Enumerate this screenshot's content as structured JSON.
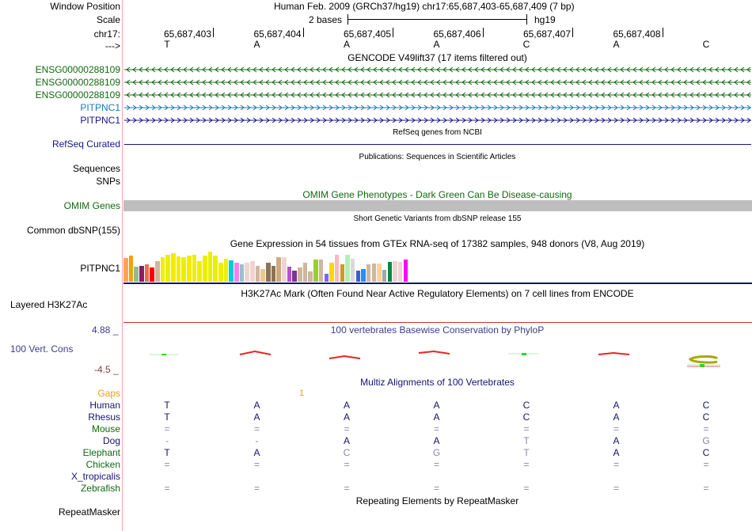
{
  "header": {
    "window_position_label": "Window Position",
    "window_position_value": "Human Feb. 2009 (GRCh37/hg19)   chr17:65,687,403-65,687,409 (7 bp)",
    "scale_label": "Scale",
    "scale_text": "2 bases",
    "scale_assembly": "hg19",
    "chrom_label": "chr17:",
    "strand_label": "--->",
    "positions": [
      "65,687,403",
      "65,687,404",
      "65,687,405",
      "65,687,406",
      "65,687,407",
      "65,687,408"
    ],
    "bases": [
      "T",
      "A",
      "A",
      "A",
      "C",
      "A",
      "C"
    ]
  },
  "tracks": {
    "gencode": {
      "title": "GENCODE V49lift37 (17 items filtered out)",
      "items": [
        {
          "label": "ENSG00000288109",
          "strand": "-",
          "color": "#0f6a0f"
        },
        {
          "label": "ENSG00000288109",
          "strand": "-",
          "color": "#0f6a0f"
        },
        {
          "label": "ENSG00000288109",
          "strand": "-",
          "color": "#0f6a0f"
        },
        {
          "label": "PITPNC1",
          "strand": "+",
          "color": "#1a78b4"
        },
        {
          "label": "PITPNC1",
          "strand": "+",
          "color": "#14148c"
        }
      ]
    },
    "refseq": {
      "title": "RefSeq genes from NCBI",
      "label": "RefSeq Curated",
      "color": "#14148c"
    },
    "publications": {
      "title": "Publications: Sequences in Scientific Articles",
      "labels": [
        "Sequences",
        "SNPs"
      ]
    },
    "omim": {
      "title": "OMIM Gene Phenotypes - Dark Green Can Be Disease-causing",
      "label": "OMIM Genes",
      "color": "#0f6a0f",
      "bar_color": "#bebebe"
    },
    "dbsnp": {
      "title": "Short Genetic Variants from dbSNP release 155",
      "label": "Common dbSNP(155)"
    },
    "gtex": {
      "title": "Gene Expression in 54 tissues from GTEx RNA-seq of 17382 samples, 948 donors (V8, Aug 2019)",
      "label": "PITPNC1",
      "bars": [
        {
          "v": 0.75,
          "c": "#ffa54f"
        },
        {
          "v": 0.82,
          "c": "#eea20b"
        },
        {
          "v": 0.48,
          "c": "#8fbc8f"
        },
        {
          "v": 0.5,
          "c": "#8b1c62"
        },
        {
          "v": 0.55,
          "c": "#ee6a50"
        },
        {
          "v": 0.45,
          "c": "#ff0000"
        },
        {
          "v": 0.66,
          "c": "#cdb79e"
        },
        {
          "v": 0.77,
          "c": "#eeee00"
        },
        {
          "v": 0.84,
          "c": "#eeee00"
        },
        {
          "v": 0.9,
          "c": "#eeee00"
        },
        {
          "v": 0.8,
          "c": "#eeee00"
        },
        {
          "v": 0.77,
          "c": "#eeee00"
        },
        {
          "v": 0.83,
          "c": "#eeee00"
        },
        {
          "v": 0.86,
          "c": "#eeee00"
        },
        {
          "v": 0.65,
          "c": "#eeee00"
        },
        {
          "v": 0.82,
          "c": "#eeee00"
        },
        {
          "v": 0.95,
          "c": "#eeee00"
        },
        {
          "v": 0.83,
          "c": "#eeee00"
        },
        {
          "v": 0.6,
          "c": "#eeee00"
        },
        {
          "v": 0.73,
          "c": "#eeee00"
        },
        {
          "v": 0.67,
          "c": "#00cdcd"
        },
        {
          "v": 0.6,
          "c": "#ee82ee"
        },
        {
          "v": 0.55,
          "c": "#9ac0cd"
        },
        {
          "v": 0.6,
          "c": "#eed5d2"
        },
        {
          "v": 0.64,
          "c": "#eed5d2"
        },
        {
          "v": 0.5,
          "c": "#cdb79e"
        },
        {
          "v": 0.4,
          "c": "#eec591"
        },
        {
          "v": 0.6,
          "c": "#8b7355"
        },
        {
          "v": 0.5,
          "c": "#8b7355"
        },
        {
          "v": 0.77,
          "c": "#cdaa7d"
        },
        {
          "v": 0.77,
          "c": "#eed5d2"
        },
        {
          "v": 0.48,
          "c": "#b452cd"
        },
        {
          "v": 0.36,
          "c": "#7a378b"
        },
        {
          "v": 0.44,
          "c": "#cdb79e"
        },
        {
          "v": 0.6,
          "c": "#cdb79e"
        },
        {
          "v": 0.32,
          "c": "#cdb79e"
        },
        {
          "v": 0.7,
          "c": "#9acd32"
        },
        {
          "v": 0.7,
          "c": "#cdb79e"
        },
        {
          "v": 0.24,
          "c": "#7b68ee"
        },
        {
          "v": 0.6,
          "c": "#ffd700"
        },
        {
          "v": 0.85,
          "c": "#ffb6c1"
        },
        {
          "v": 0.54,
          "c": "#cd9b1d"
        },
        {
          "v": 0.85,
          "c": "#b4eeb4"
        },
        {
          "v": 0.73,
          "c": "#d9d9d9"
        },
        {
          "v": 0.35,
          "c": "#3a5fcd"
        },
        {
          "v": 0.4,
          "c": "#1e90ff"
        },
        {
          "v": 0.55,
          "c": "#cdb79e"
        },
        {
          "v": 0.57,
          "c": "#cdb79e"
        },
        {
          "v": 0.57,
          "c": "#ffd39b"
        },
        {
          "v": 0.38,
          "c": "#a6a6a6"
        },
        {
          "v": 0.63,
          "c": "#008b45"
        },
        {
          "v": 0.66,
          "c": "#eed5d2"
        },
        {
          "v": 0.63,
          "c": "#eed5d2"
        },
        {
          "v": 0.7,
          "c": "#ff00ff"
        }
      ]
    },
    "h3k27ac": {
      "title": "H3K27Ac Mark (Often Found Near Active Regulatory Elements) on 7 cell lines from ENCODE",
      "label": "Layered H3K27Ac"
    },
    "phylop": {
      "title": "100 vertebrates Basewise Conservation by PhyloP",
      "label": "100 Vert. Cons",
      "max": "4.88 _",
      "min": "-4.5 _"
    },
    "multiz": {
      "title": "Multiz Alignments of 100 Vertebrates",
      "gaps_label": "Gaps",
      "gap_value": "1",
      "species": [
        {
          "name": "Human",
          "color": "#14146e",
          "bases": [
            "T",
            "A",
            "A",
            "A",
            "C",
            "A",
            "C"
          ]
        },
        {
          "name": "Rhesus",
          "color": "#14146e",
          "bases": [
            "T",
            "A",
            "A",
            "A",
            "C",
            "A",
            "C"
          ]
        },
        {
          "name": "Mouse",
          "color": "#0f6a0f",
          "bases": [
            "=",
            "=",
            "=",
            "=",
            "=",
            "=",
            "="
          ]
        },
        {
          "name": "Dog",
          "color": "#14146e",
          "bases": [
            "-",
            "-",
            "A",
            "A",
            "T",
            "A",
            "G"
          ]
        },
        {
          "name": "Elephant",
          "color": "#0f6a0f",
          "bases": [
            "T",
            "A",
            "C",
            "G",
            "T",
            "A",
            "C"
          ]
        },
        {
          "name": "Chicken",
          "color": "#0f6a0f",
          "bases": [
            "=",
            "=",
            "=",
            "=",
            "=",
            "=",
            "="
          ]
        },
        {
          "name": "X_tropicalis",
          "color": "#14146e",
          "bases": [
            "",
            "",
            "",
            "",
            "",
            "",
            ""
          ]
        },
        {
          "name": "Zebrafish",
          "color": "#0f6a0f",
          "bases": [
            "=",
            "=",
            "=",
            "=",
            "=",
            "=",
            "="
          ]
        }
      ]
    },
    "repeatmasker": {
      "title": "Repeating Elements by RepeatMasker",
      "label": "RepeatMasker"
    }
  }
}
